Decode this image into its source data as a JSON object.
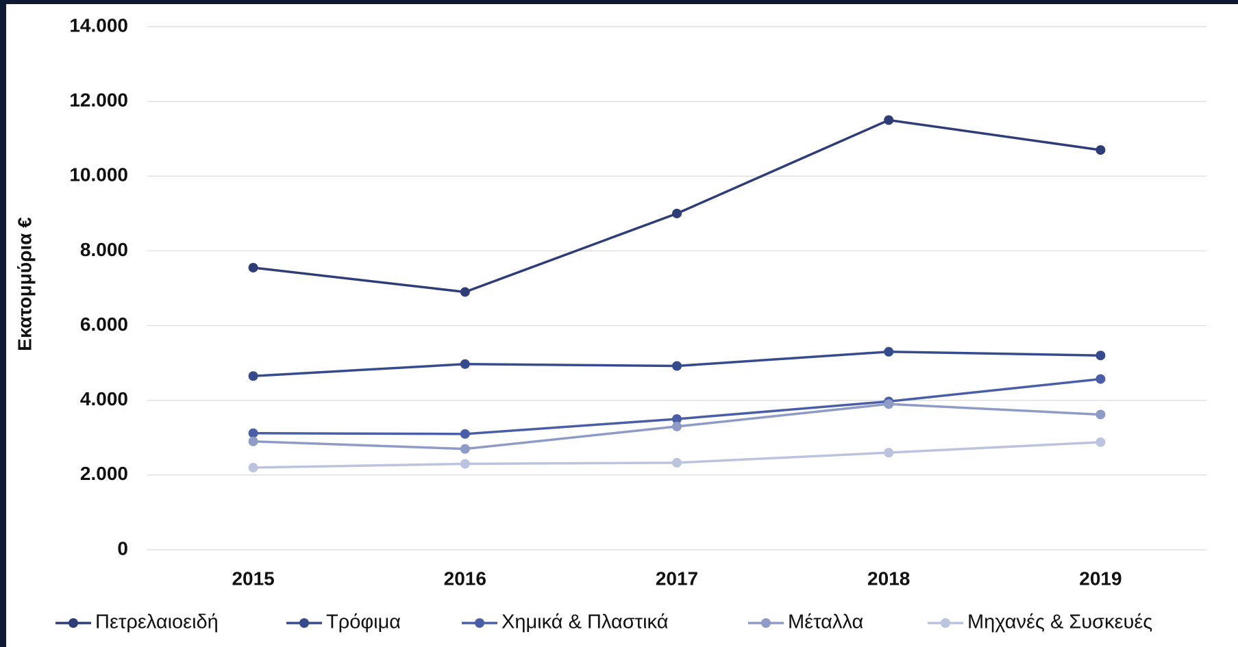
{
  "chart_data": {
    "type": "line",
    "y_label": "Εκατομμύρια €",
    "categories": [
      "2015",
      "2016",
      "2017",
      "2018",
      "2019"
    ],
    "series": [
      {
        "name": "Πετρελαιοειδή",
        "color": "#2e3d78",
        "values": [
          7550,
          6900,
          9000,
          11500,
          10700
        ]
      },
      {
        "name": "Τρόφιμα",
        "color": "#364b8e",
        "values": [
          4650,
          4970,
          4920,
          5300,
          5200
        ]
      },
      {
        "name": "Χημικά & Πλαστικά",
        "color": "#4a5ea8",
        "values": [
          3120,
          3100,
          3500,
          3970,
          4570
        ]
      },
      {
        "name": "Μέταλλα",
        "color": "#8f9bc7",
        "values": [
          2900,
          2700,
          3300,
          3900,
          3620
        ]
      },
      {
        "name": "Μηχανές & Συσκευές",
        "color": "#bcc3de",
        "values": [
          2200,
          2300,
          2330,
          2600,
          2880
        ]
      }
    ],
    "ylim": [
      0,
      14000
    ],
    "yticks": [
      0,
      {
        "value": 2000,
        "label": "2.000"
      },
      {
        "value": 4000,
        "label": "4.000"
      },
      {
        "value": 6000,
        "label": "6.000"
      },
      {
        "value": 8000,
        "label": "8.000"
      },
      {
        "value": 10000,
        "label": "10.000"
      },
      {
        "value": 12000,
        "label": "12.000"
      },
      {
        "value": 14000,
        "label": "14.000"
      }
    ],
    "grid": true,
    "legend": "bottom"
  }
}
